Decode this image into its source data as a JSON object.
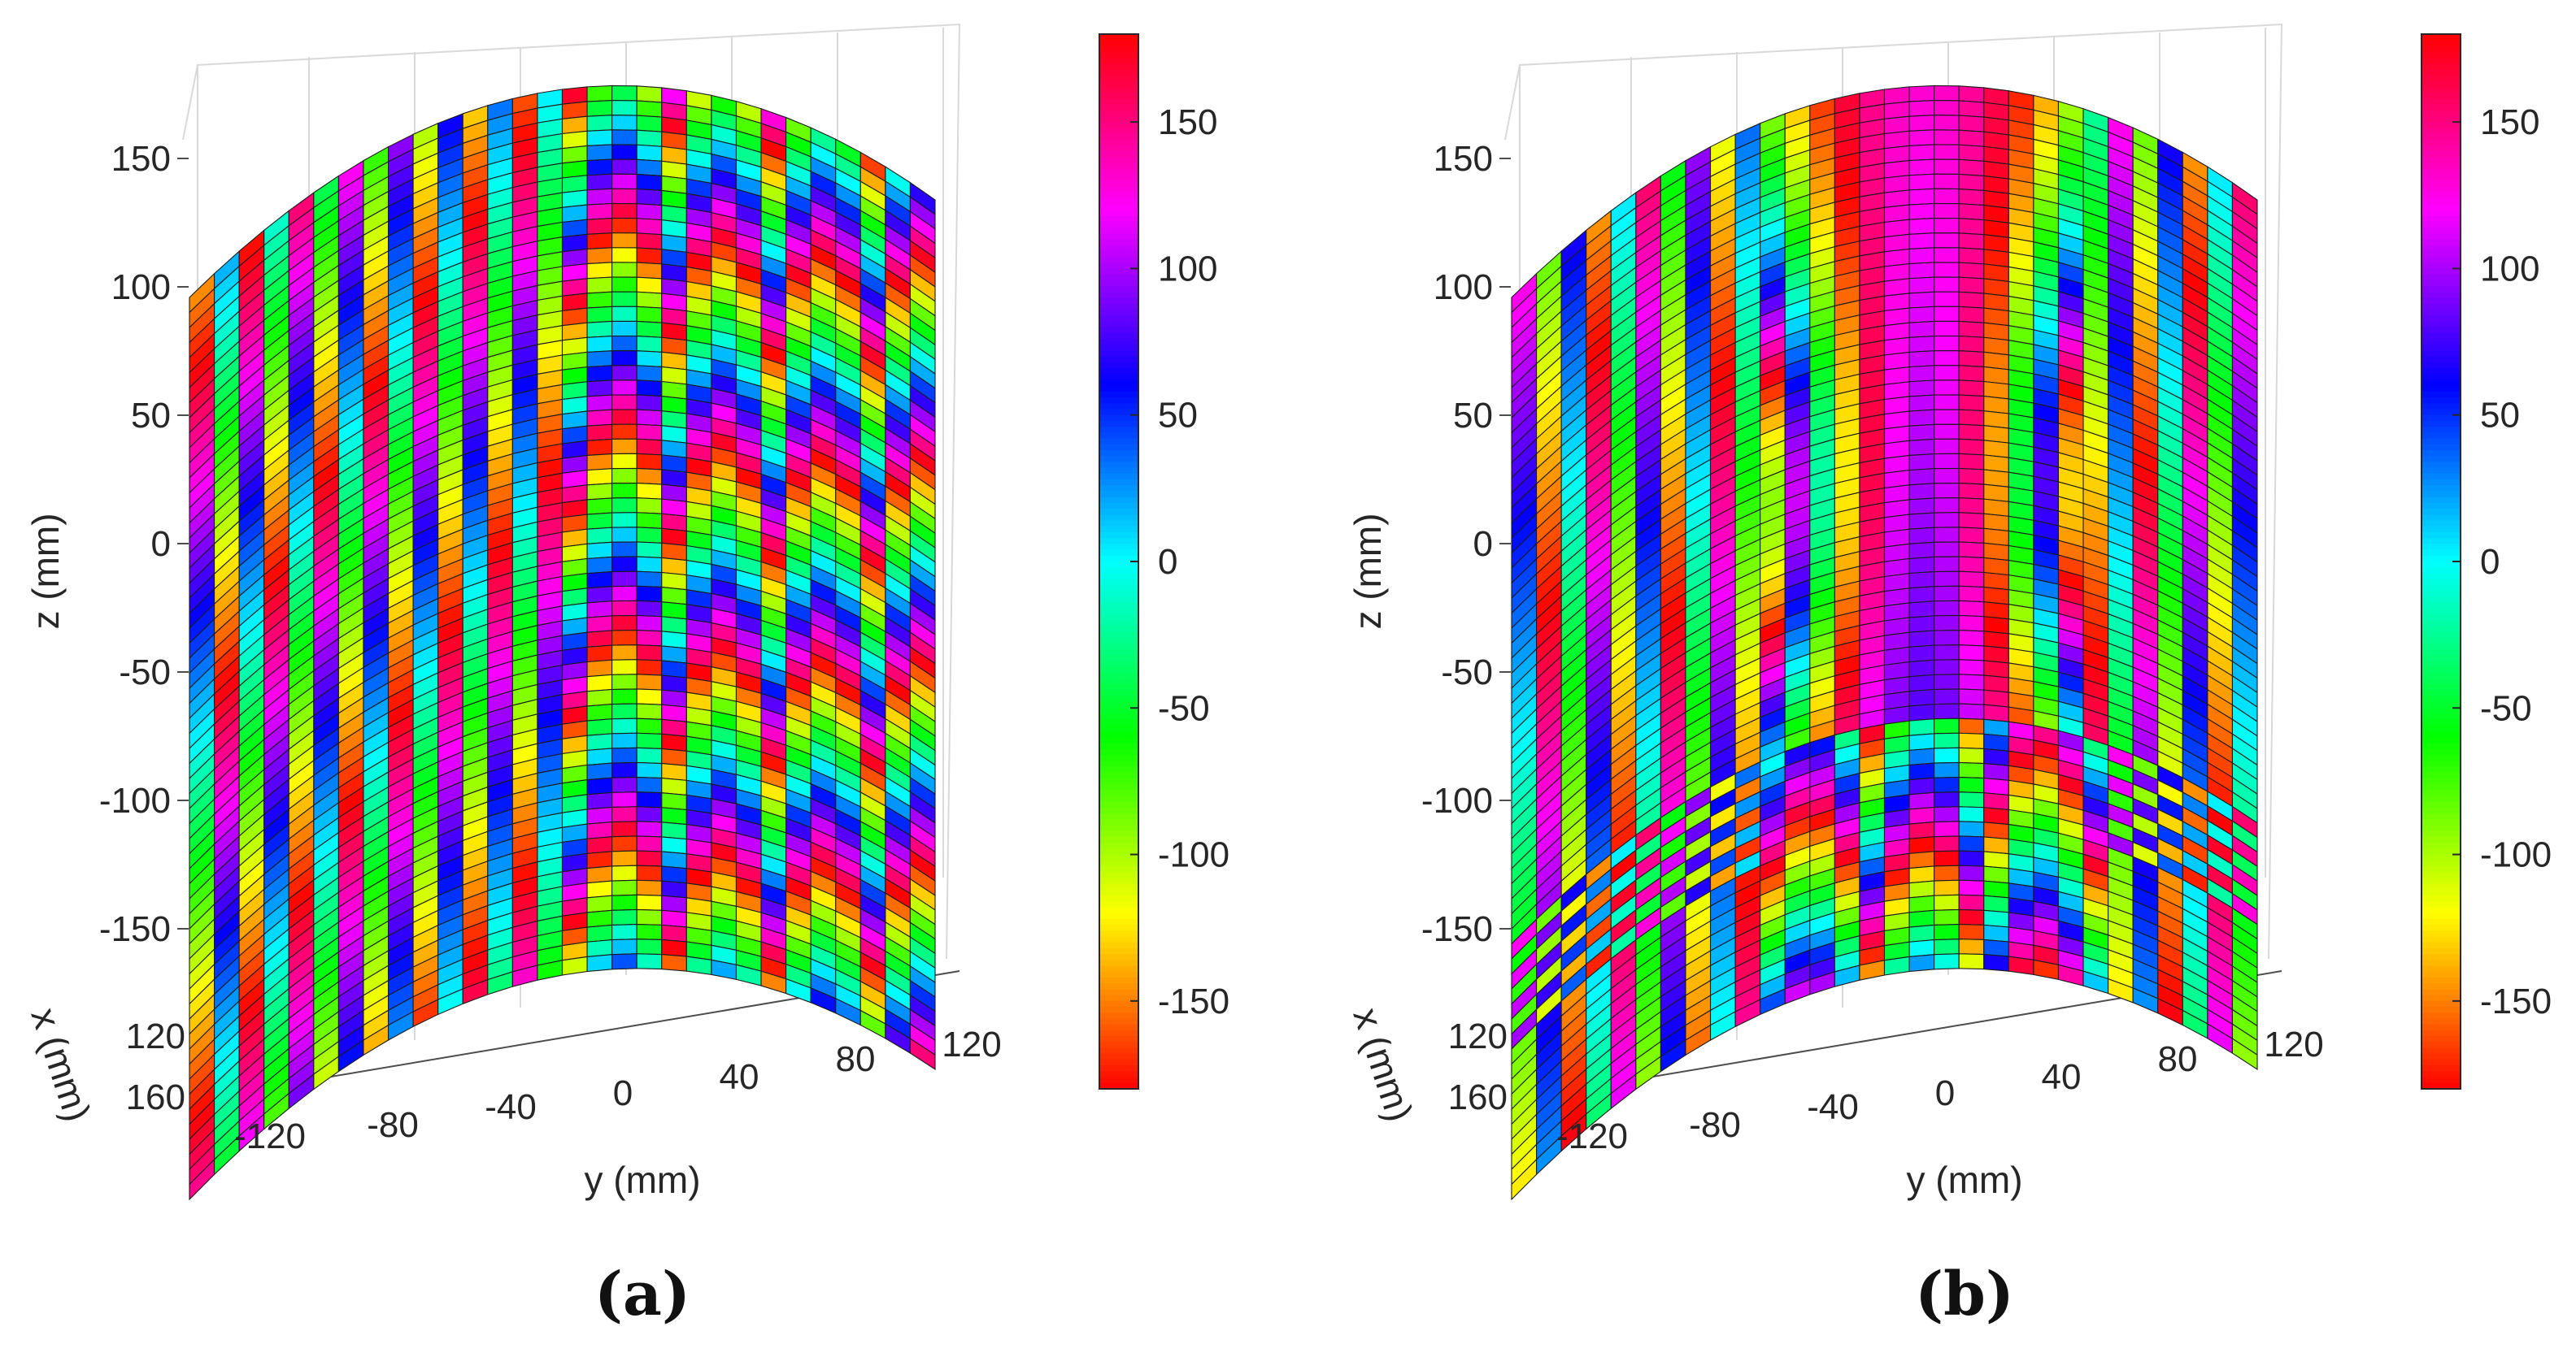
{
  "chart_data": [
    {
      "type": "heatmap",
      "panel_label": "(a)",
      "surface": "cylindrical (curved) surface, phase map, 30 columns x 60 rows of patches",
      "pattern": "vertical stripes on left half; nested arch-shaped fringes centered near y = 20 mm on right half",
      "xlabel": "y (mm)",
      "ylabel": "z (mm)",
      "depth_label": "x (mm)",
      "x_ticks": [
        "-120",
        "-80",
        "-40",
        "0",
        "40",
        "80",
        "120"
      ],
      "z_ticks": [
        "150",
        "100",
        "50",
        "0",
        "-50",
        "-100",
        "-150"
      ],
      "depth_ticks": [
        "120",
        "160"
      ],
      "xlim": [
        -140,
        140
      ],
      "zlim": [
        -180,
        180
      ],
      "colorbar": {
        "range": [
          -180,
          180
        ],
        "ticks": [
          "150",
          "100",
          "50",
          "0",
          "-50",
          "-100",
          "-150"
        ],
        "colormap": "hsv"
      }
    },
    {
      "type": "heatmap",
      "panel_label": "(b)",
      "surface": "cylindrical (curved) surface, phase map, 30 columns x 60 rows of patches",
      "pattern": "vertical stripes on sides; hourglass-shaped region centered near y = 15 mm in upper part; interference band near z = -100 mm; arches in lower part",
      "xlabel": "y (mm)",
      "ylabel": "z (mm)",
      "depth_label": "x (mm)",
      "x_ticks": [
        "-120",
        "-80",
        "-40",
        "0",
        "40",
        "80",
        "120"
      ],
      "z_ticks": [
        "150",
        "100",
        "50",
        "0",
        "-50",
        "-100",
        "-150"
      ],
      "depth_ticks": [
        "120",
        "160"
      ],
      "xlim": [
        -140,
        140
      ],
      "zlim": [
        -180,
        180
      ],
      "colorbar": {
        "range": [
          -180,
          180
        ],
        "ticks": [
          "150",
          "100",
          "50",
          "0",
          "-50",
          "-100",
          "-150"
        ],
        "colormap": "hsv"
      }
    }
  ]
}
